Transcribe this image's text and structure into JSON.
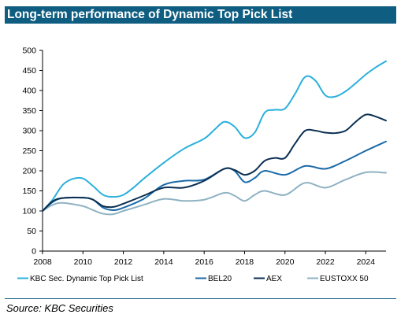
{
  "header": {
    "title": "Long-term performance of Dynamic Top Pick List"
  },
  "footer": {
    "source": "Source: KBC Securities"
  },
  "colors": {
    "title_bg": "#0f5e82",
    "dynamic": "#2bb0dc",
    "bel20": "#1a6aa8",
    "aex": "#0b2f52",
    "eustoxx": "#8fb2c2"
  },
  "chart_data": {
    "type": "line",
    "title": "Long-term performance of Dynamic Top Pick List",
    "xlabel": "",
    "ylabel": "",
    "xlim": [
      2008,
      2025
    ],
    "ylim": [
      0,
      500
    ],
    "x_ticks": [
      "2008",
      "2010",
      "2012",
      "2014",
      "2016",
      "2018",
      "2020",
      "2022",
      "2024"
    ],
    "y_ticks": [
      "0",
      "50",
      "100",
      "150",
      "200",
      "250",
      "300",
      "350",
      "400",
      "450",
      "500"
    ],
    "grid": false,
    "legend_position": "bottom",
    "series": [
      {
        "name": "KBC Sec. Dynamic Top Pick List",
        "color": "#2bb0dc",
        "x": [
          2008,
          2008.5,
          2009,
          2009.5,
          2010,
          2010.5,
          2011,
          2011.5,
          2012,
          2012.5,
          2013,
          2014,
          2015,
          2016,
          2016.5,
          2017,
          2017.5,
          2018,
          2018.5,
          2019,
          2019.5,
          2020,
          2020.5,
          2021,
          2021.5,
          2022,
          2022.5,
          2023,
          2023.5,
          2024,
          2024.5,
          2025
        ],
        "values": [
          100,
          128,
          165,
          180,
          181,
          162,
          140,
          135,
          140,
          158,
          180,
          220,
          255,
          280,
          302,
          322,
          310,
          282,
          295,
          345,
          352,
          355,
          392,
          434,
          425,
          388,
          385,
          398,
          418,
          440,
          458,
          473
        ]
      },
      {
        "name": "BEL20",
        "color": "#1a6aa8",
        "x": [
          2008,
          2008.5,
          2009,
          2010,
          2010.5,
          2011,
          2011.5,
          2012,
          2013,
          2014,
          2015,
          2016,
          2017,
          2017.5,
          2018,
          2018.5,
          2019,
          2020,
          2021,
          2022,
          2023,
          2024,
          2025
        ],
        "values": [
          100,
          122,
          132,
          133,
          128,
          108,
          102,
          108,
          130,
          165,
          175,
          178,
          205,
          200,
          172,
          182,
          200,
          190,
          212,
          205,
          225,
          250,
          273
        ]
      },
      {
        "name": "AEX",
        "color": "#0b2f52",
        "x": [
          2008,
          2008.5,
          2009,
          2010,
          2010.5,
          2011,
          2011.5,
          2012,
          2013,
          2014,
          2015,
          2016,
          2017,
          2017.5,
          2018,
          2018.5,
          2019,
          2019.5,
          2020,
          2020.5,
          2021,
          2021.5,
          2022,
          2022.5,
          2023,
          2023.5,
          2024,
          2024.5,
          2025
        ],
        "values": [
          100,
          124,
          132,
          133,
          128,
          112,
          110,
          118,
          138,
          158,
          158,
          175,
          205,
          202,
          190,
          200,
          225,
          232,
          232,
          268,
          300,
          300,
          295,
          294,
          300,
          322,
          340,
          335,
          325
        ]
      },
      {
        "name": "EUSTOXX 50",
        "color": "#8fb2c2",
        "x": [
          2008,
          2008.5,
          2009,
          2010,
          2010.5,
          2011,
          2011.5,
          2012,
          2013,
          2014,
          2015,
          2016,
          2017,
          2017.5,
          2018,
          2018.5,
          2019,
          2020,
          2021,
          2022,
          2023,
          2024,
          2025
        ],
        "values": [
          100,
          115,
          120,
          112,
          102,
          93,
          92,
          100,
          115,
          130,
          125,
          128,
          145,
          138,
          125,
          140,
          150,
          140,
          170,
          158,
          178,
          196,
          195
        ]
      }
    ]
  }
}
